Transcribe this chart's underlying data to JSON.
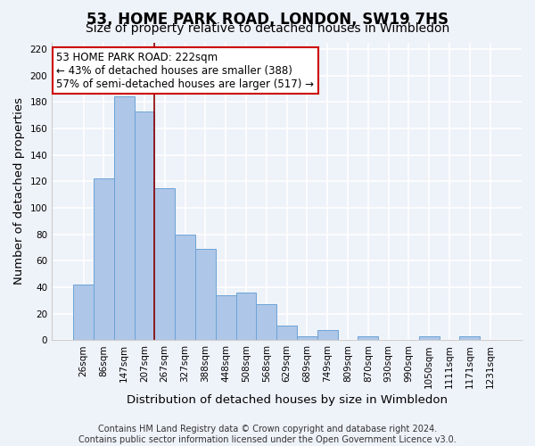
{
  "title": "53, HOME PARK ROAD, LONDON, SW19 7HS",
  "subtitle": "Size of property relative to detached houses in Wimbledon",
  "xlabel": "Distribution of detached houses by size in Wimbledon",
  "ylabel": "Number of detached properties",
  "bin_labels": [
    "26sqm",
    "86sqm",
    "147sqm",
    "207sqm",
    "267sqm",
    "327sqm",
    "388sqm",
    "448sqm",
    "508sqm",
    "568sqm",
    "629sqm",
    "689sqm",
    "749sqm",
    "809sqm",
    "870sqm",
    "930sqm",
    "990sqm",
    "1050sqm",
    "1111sqm",
    "1171sqm",
    "1231sqm"
  ],
  "bar_values": [
    42,
    122,
    184,
    173,
    115,
    80,
    69,
    34,
    36,
    27,
    11,
    3,
    8,
    0,
    3,
    0,
    0,
    3,
    0,
    3,
    0
  ],
  "bar_color": "#aec6e8",
  "bar_edge_color": "#6ba3d6",
  "vline_x": 3.5,
  "vline_color": "#8b0000",
  "annotation_text": "53 HOME PARK ROAD: 222sqm\n← 43% of detached houses are smaller (388)\n57% of semi-detached houses are larger (517) →",
  "annotation_box_color": "white",
  "annotation_box_edge": "#cc0000",
  "ylim": [
    0,
    225
  ],
  "yticks": [
    0,
    20,
    40,
    60,
    80,
    100,
    120,
    140,
    160,
    180,
    200,
    220
  ],
  "footer": "Contains HM Land Registry data © Crown copyright and database right 2024.\nContains public sector information licensed under the Open Government Licence v3.0.",
  "background_color": "#eef2f9",
  "grid_color": "#ffffff",
  "title_fontsize": 12,
  "subtitle_fontsize": 10,
  "axis_label_fontsize": 9.5,
  "tick_fontsize": 7.5,
  "footer_fontsize": 7,
  "annotation_fontsize": 8.5
}
